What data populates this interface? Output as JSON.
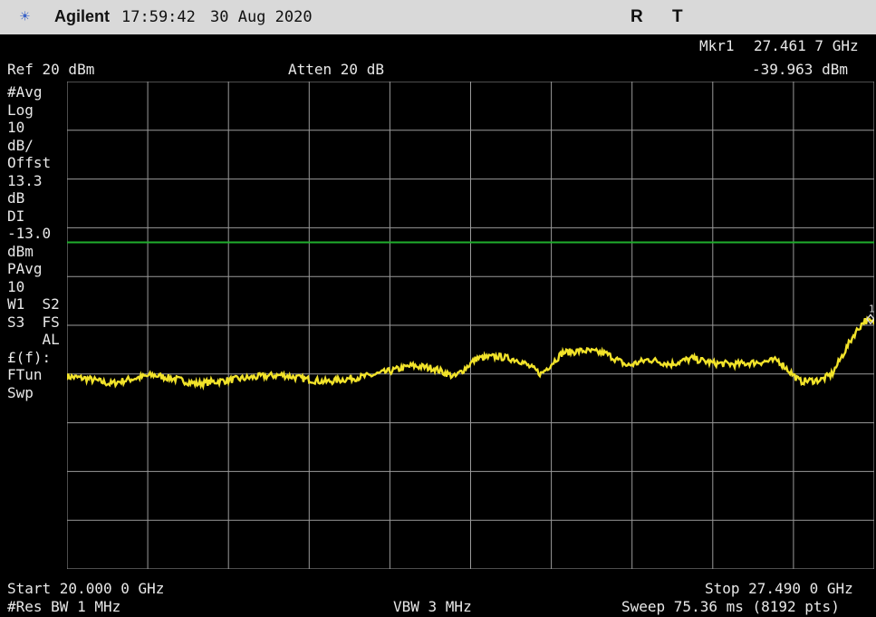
{
  "header": {
    "logo_icon": "sunburst-icon",
    "brand": "Agilent",
    "time": "17:59:42",
    "date": "30 Aug 2020",
    "status_r": "R",
    "status_t": "T"
  },
  "marker": {
    "label": "Mkr1",
    "freq": "27.461 7 GHz",
    "level": "-39.963 dBm",
    "number": "1"
  },
  "settings": {
    "ref_level": "Ref 20 dBm",
    "atten": "Atten 20 dB"
  },
  "left_annotations": [
    "#Avg",
    "Log",
    "10",
    "dB/",
    "Offst",
    "13.3",
    "dB",
    "DI",
    "-13.0",
    "dBm",
    "PAvg",
    "10",
    "W1  S2",
    "S3  FS",
    "    AL",
    "£(f):",
    "FTun",
    "Swp"
  ],
  "footer": {
    "start": "Start 20.000 0 GHz",
    "stop": "Stop 27.490 0 GHz",
    "res_bw": "#Res BW 1 MHz",
    "vbw": "VBW 3 MHz",
    "sweep": "Sweep 75.36 ms (8192 pts)"
  },
  "chart_data": {
    "type": "line",
    "x_unit": "GHz",
    "y_unit": "dBm",
    "xlim": [
      20.0,
      27.49
    ],
    "ylim": [
      -80,
      20
    ],
    "grid": true,
    "display_line": -13.0,
    "colors": {
      "trace": "#f2e32a",
      "display_line": "#1fae2c",
      "grid": "#9a9a9a"
    },
    "series": [
      {
        "x": [
          20.0,
          20.2,
          20.4,
          20.6,
          20.8,
          21.0,
          21.2,
          21.4,
          21.6,
          21.8,
          22.0,
          22.2,
          22.4,
          22.6,
          22.8,
          23.0,
          23.2,
          23.4,
          23.6,
          23.8,
          24.0,
          24.2,
          24.4,
          24.6,
          24.8,
          25.0,
          25.2,
          25.4,
          25.6,
          25.8,
          26.0,
          26.2,
          26.4,
          26.6,
          26.8,
          27.0,
          27.1,
          27.2,
          27.3,
          27.4,
          27.49
        ],
        "y": [
          -40.5,
          -41.0,
          -42.0,
          -41.0,
          -40.2,
          -41.0,
          -42.0,
          -41.5,
          -41.0,
          -40.5,
          -40.2,
          -41.0,
          -41.6,
          -41.0,
          -40.4,
          -39.4,
          -38.3,
          -38.8,
          -40.6,
          -36.8,
          -36.4,
          -37.2,
          -40.0,
          -35.6,
          -35.2,
          -35.8,
          -38.3,
          -37.0,
          -38.0,
          -36.8,
          -37.8,
          -38.0,
          -37.6,
          -37.2,
          -41.5,
          -41.2,
          -40.0,
          -36.0,
          -32.0,
          -29.0,
          -29.5
        ]
      }
    ]
  }
}
